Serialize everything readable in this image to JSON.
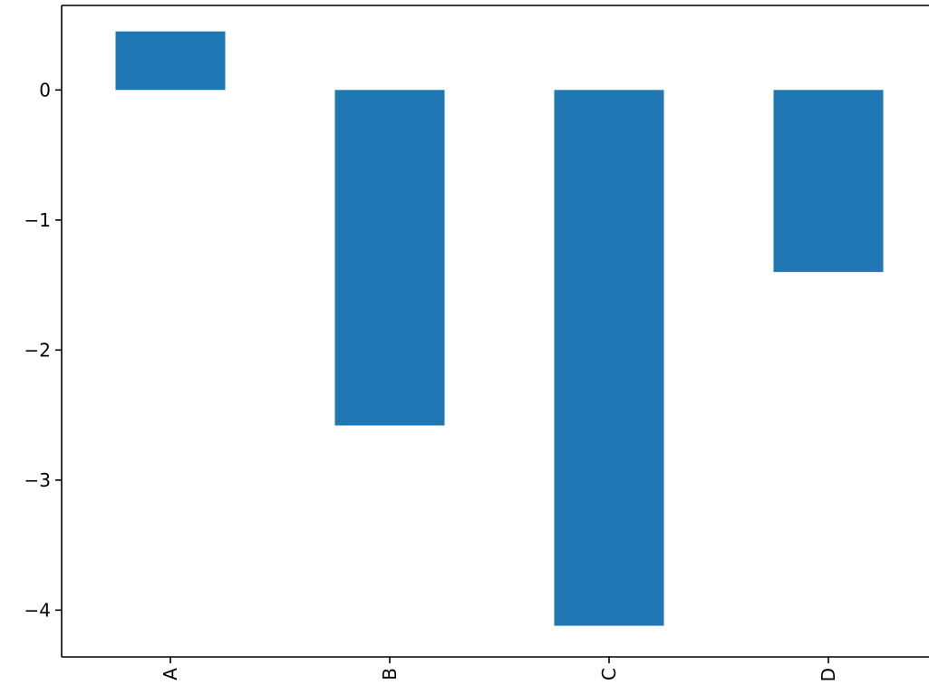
{
  "chart_data": {
    "type": "bar",
    "categories": [
      "A",
      "B",
      "C",
      "D"
    ],
    "values": [
      0.45,
      -2.58,
      -4.12,
      -1.4
    ],
    "yticks": [
      0,
      -1,
      -2,
      -3,
      -4
    ],
    "ytick_labels": [
      "0",
      "−1",
      "−2",
      "−3",
      "−4"
    ],
    "ylim": [
      -4.36,
      0.65
    ],
    "title": "",
    "xlabel": "",
    "ylabel": "",
    "grid": false,
    "bar_color": "#1f77b4"
  }
}
